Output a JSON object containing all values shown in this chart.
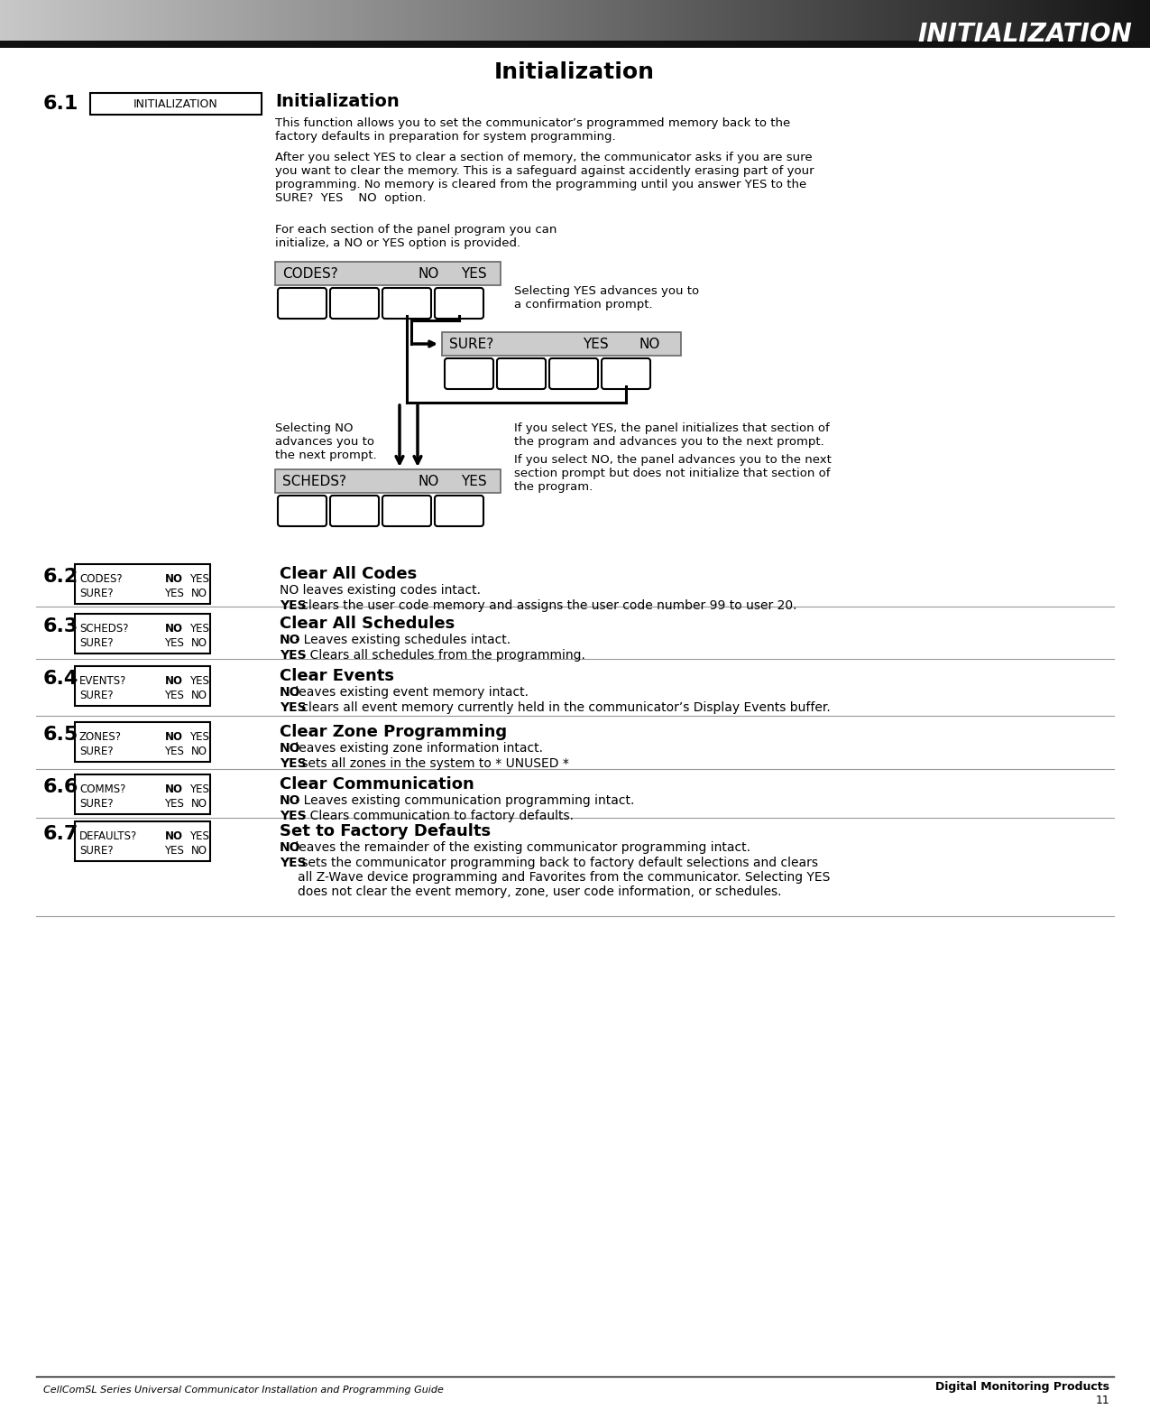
{
  "page_title": "Initialization",
  "header_text": "INITIALIZATION",
  "section_label": "INITIALIZATION",
  "section_heading": "Initialization",
  "para1": "This function allows you to set the communicator’s programmed memory back to the\nfactory defaults in preparation for system programming.",
  "para2": "After you select YES to clear a section of memory, the communicator asks if you are sure\nyou want to clear the memory. This is a safeguard against accidently erasing part of your\nprogramming. No memory is cleared from the programming until you answer YES to the\nSURE?  YES    NO  option.",
  "para3": "For each section of the panel program you can\ninitialize, a NO or YES option is provided.",
  "selecting_yes_text": "Selecting YES advances you to\na confirmation prompt.",
  "selecting_no_text": "Selecting NO\nadvances you to\nthe next prompt.",
  "if_yes_text": "If you select YES, the panel initializes that section of\nthe program and advances you to the next prompt.",
  "if_no_text": "If you select NO, the panel advances you to the next\nsection prompt but does not initialize that section of\nthe program.",
  "sections": [
    {
      "num": "6.2",
      "box_line1": "CODES?      NO  YES",
      "box_line2": "SURE?       YES  NO",
      "heading": "Clear All Codes",
      "lines": [
        {
          "text": "NO leaves existing codes intact.",
          "bold": ""
        },
        {
          "text": "YES clears the user code memory and assigns the user code number 99 to user 20.",
          "bold": "YES"
        }
      ]
    },
    {
      "num": "6.3",
      "box_line1": "SCHEDS?     NO  YES",
      "box_line2": "SURE?       YES  NO",
      "heading": "Clear All Schedules",
      "lines": [
        {
          "text": "NO - Leaves existing schedules intact.",
          "bold": "NO"
        },
        {
          "text": "YES - Clears all schedules from the programming.",
          "bold": "YES"
        }
      ]
    },
    {
      "num": "6.4",
      "box_line1": "EVENTS?     NO  YES",
      "box_line2": "SURE?       YES  NO",
      "heading": "Clear Events",
      "lines": [
        {
          "text": "NO leaves existing event memory intact.",
          "bold": "NO"
        },
        {
          "text": "YES clears all event memory currently held in the communicator’s Display Events buffer.",
          "bold": "YES"
        }
      ]
    },
    {
      "num": "6.5",
      "box_line1": "ZONES?      NO  YES",
      "box_line2": "SURE?       YES  NO",
      "heading": "Clear Zone Programming",
      "lines": [
        {
          "text": "NO leaves existing zone information intact.",
          "bold": "NO"
        },
        {
          "text": "YES sets all zones in the system to * UNUSED *",
          "bold": "YES"
        }
      ]
    },
    {
      "num": "6.6",
      "box_line1": "COMMS?      NO  YES",
      "box_line2": "SURE?       YES  NO",
      "heading": "Clear Communication",
      "lines": [
        {
          "text": "NO - Leaves existing communication programming intact.",
          "bold": "NO"
        },
        {
          "text": "YES - Clears communication to factory defaults.",
          "bold": "YES"
        }
      ]
    },
    {
      "num": "6.7",
      "box_line1": "DEFAULTS?   NO  YES",
      "box_line2": "SURE?       YES  NO",
      "heading": "Set to Factory Defaults",
      "lines": [
        {
          "text": "NO leaves the remainder of the existing communicator programming intact.",
          "bold": "NO"
        },
        {
          "text": "YES sets the communicator programming back to factory default selections and clears\nall Z-Wave device programming and Favorites from the communicator. Selecting YES\ndoes not clear the event memory, zone, user code information, or schedules.",
          "bold": "YES",
          "not_bold_italic": "not"
        }
      ]
    }
  ],
  "footer_left": "CellComSL Series Universal Communicator Installation and Programming Guide",
  "footer_right": "Digital Monitoring Products",
  "footer_page": "11"
}
